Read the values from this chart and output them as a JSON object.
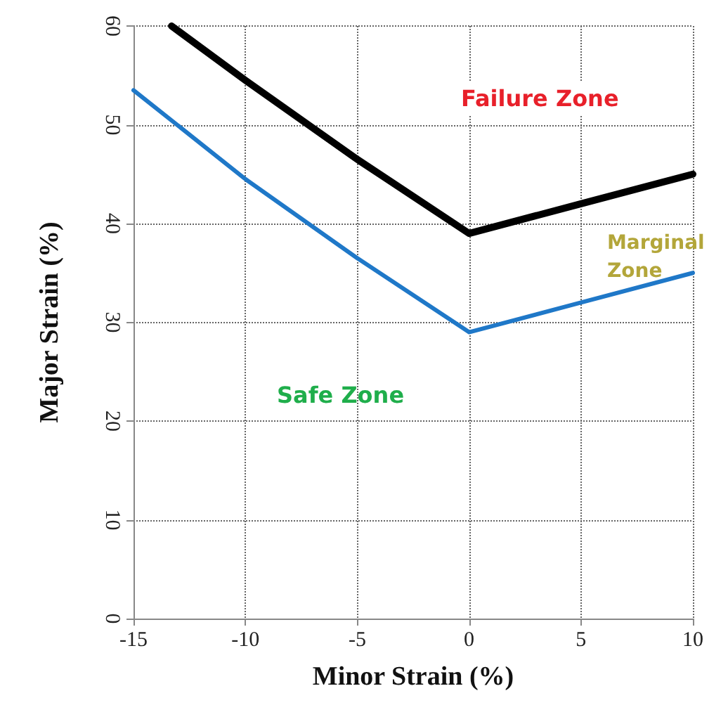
{
  "chart_data": {
    "type": "line",
    "xlabel": "Minor Strain (%)",
    "ylabel": "Major Strain (%)",
    "xlim": [
      -15,
      10
    ],
    "xticks": [
      -15,
      -10,
      -5,
      0,
      5,
      10
    ],
    "ylim": [
      0,
      60
    ],
    "yticks": [
      0,
      10,
      20,
      30,
      40,
      50,
      60
    ],
    "grid": true,
    "marker": "none",
    "line_style": "solid",
    "series": [
      {
        "color": "#000000",
        "x": [
          -13.3,
          -10,
          -5,
          0,
          5,
          10
        ],
        "values": [
          60,
          54.5,
          46.5,
          39,
          42,
          45
        ]
      },
      {
        "color": "#1f78c8",
        "x": [
          -15,
          -10,
          -5,
          0,
          5,
          10
        ],
        "values": [
          53.5,
          44.5,
          36.5,
          29,
          32,
          35
        ]
      }
    ],
    "annotations": [
      "Failure Zone",
      "Marginal\nZone",
      "Safe Zone"
    ]
  }
}
